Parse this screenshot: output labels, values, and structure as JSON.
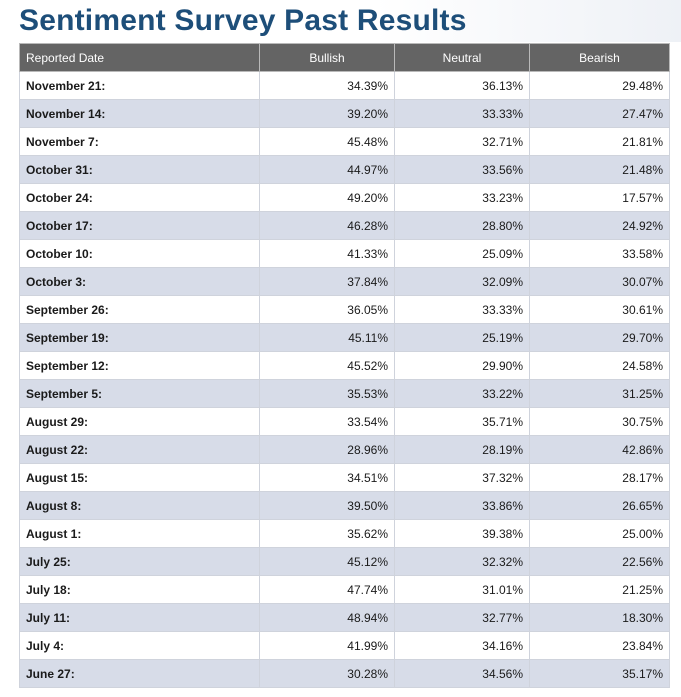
{
  "page": {
    "title": "Sentiment Survey Past Results"
  },
  "table": {
    "headers": [
      "Reported Date",
      "Bullish",
      "Neutral",
      "Bearish"
    ],
    "rows": [
      {
        "date": "November 21:",
        "bullish": "34.39%",
        "neutral": "36.13%",
        "bearish": "29.48%"
      },
      {
        "date": "November 14:",
        "bullish": "39.20%",
        "neutral": "33.33%",
        "bearish": "27.47%"
      },
      {
        "date": "November 7:",
        "bullish": "45.48%",
        "neutral": "32.71%",
        "bearish": "21.81%"
      },
      {
        "date": "October 31:",
        "bullish": "44.97%",
        "neutral": "33.56%",
        "bearish": "21.48%"
      },
      {
        "date": "October 24:",
        "bullish": "49.20%",
        "neutral": "33.23%",
        "bearish": "17.57%"
      },
      {
        "date": "October 17:",
        "bullish": "46.28%",
        "neutral": "28.80%",
        "bearish": "24.92%"
      },
      {
        "date": "October 10:",
        "bullish": "41.33%",
        "neutral": "25.09%",
        "bearish": "33.58%"
      },
      {
        "date": "October 3:",
        "bullish": "37.84%",
        "neutral": "32.09%",
        "bearish": "30.07%"
      },
      {
        "date": "September 26:",
        "bullish": "36.05%",
        "neutral": "33.33%",
        "bearish": "30.61%"
      },
      {
        "date": "September 19:",
        "bullish": "45.11%",
        "neutral": "25.19%",
        "bearish": "29.70%"
      },
      {
        "date": "September 12:",
        "bullish": "45.52%",
        "neutral": "29.90%",
        "bearish": "24.58%"
      },
      {
        "date": "September 5:",
        "bullish": "35.53%",
        "neutral": "33.22%",
        "bearish": "31.25%"
      },
      {
        "date": "August 29:",
        "bullish": "33.54%",
        "neutral": "35.71%",
        "bearish": "30.75%"
      },
      {
        "date": "August 22:",
        "bullish": "28.96%",
        "neutral": "28.19%",
        "bearish": "42.86%"
      },
      {
        "date": "August 15:",
        "bullish": "34.51%",
        "neutral": "37.32%",
        "bearish": "28.17%"
      },
      {
        "date": "August 8:",
        "bullish": "39.50%",
        "neutral": "33.86%",
        "bearish": "26.65%"
      },
      {
        "date": "August 1:",
        "bullish": "35.62%",
        "neutral": "39.38%",
        "bearish": "25.00%"
      },
      {
        "date": "July 25:",
        "bullish": "45.12%",
        "neutral": "32.32%",
        "bearish": "22.56%"
      },
      {
        "date": "July 18:",
        "bullish": "47.74%",
        "neutral": "31.01%",
        "bearish": "21.25%"
      },
      {
        "date": "July 11:",
        "bullish": "48.94%",
        "neutral": "32.77%",
        "bearish": "18.30%"
      },
      {
        "date": "July 4:",
        "bullish": "41.99%",
        "neutral": "34.16%",
        "bearish": "23.84%"
      },
      {
        "date": "June 27:",
        "bullish": "30.28%",
        "neutral": "34.56%",
        "bearish": "35.17%"
      }
    ]
  }
}
